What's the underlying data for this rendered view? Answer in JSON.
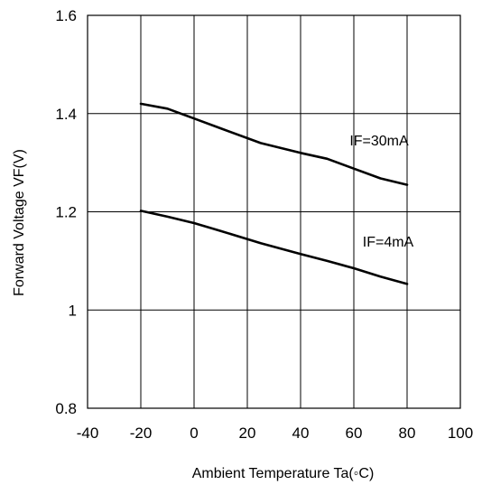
{
  "chart_data": {
    "type": "line",
    "title": "",
    "xlabel": "Ambient Temperature Ta(◦C)",
    "ylabel": "Forward Voltage VF(V)",
    "xlim": [
      -40,
      100
    ],
    "ylim": [
      0.8,
      1.6
    ],
    "x_ticks": [
      -40,
      -20,
      0,
      20,
      40,
      60,
      80,
      100
    ],
    "y_ticks": [
      0.8,
      1.0,
      1.2,
      1.4,
      1.6
    ],
    "x_tick_labels": [
      "-40",
      "-20",
      "0",
      "20",
      "40",
      "60",
      "80",
      "100"
    ],
    "y_tick_labels": [
      "0.8",
      "1",
      "1.2",
      "1.4",
      "1.6"
    ],
    "grid": "vertical lines at every x tick, horizontal lines at every y tick",
    "series": [
      {
        "name": "IF=30mA",
        "x": [
          -20,
          -10,
          0,
          10,
          25,
          40,
          50,
          60,
          70,
          80
        ],
        "y": [
          1.42,
          1.41,
          1.39,
          1.37,
          1.34,
          1.32,
          1.308,
          1.288,
          1.268,
          1.255
        ]
      },
      {
        "name": "IF=4mA",
        "x": [
          -20,
          -10,
          0,
          10,
          25,
          40,
          50,
          60,
          70,
          80
        ],
        "y": [
          1.202,
          1.19,
          1.177,
          1.161,
          1.136,
          1.114,
          1.1,
          1.085,
          1.068,
          1.053
        ]
      }
    ]
  }
}
